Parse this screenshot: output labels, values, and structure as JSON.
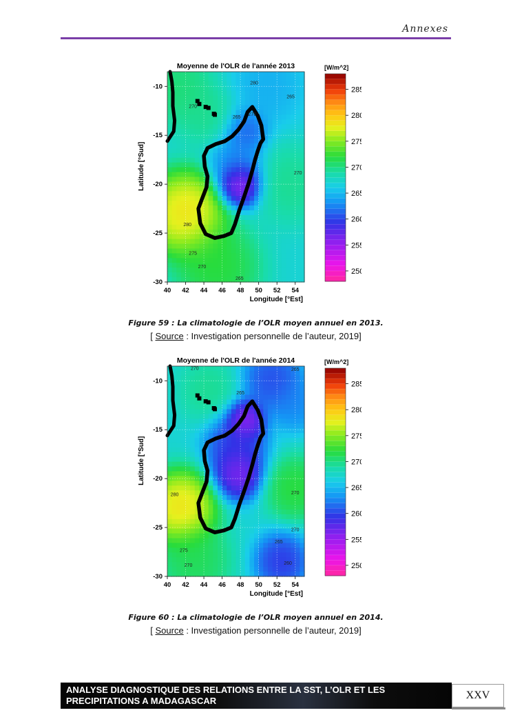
{
  "header": {
    "title": "Annexes"
  },
  "figures": [
    {
      "caption": "Figure 59 : La climatologie de l’OLR moyen annuel en 2013.",
      "source_label": "Source",
      "source_text": " : Investigation personnelle de l’auteur, 2019]"
    },
    {
      "caption": "Figure 60 : La climatologie de l’OLR moyen annuel en 2014.",
      "source_label": "Source",
      "source_text": " : Investigation personnelle de l’auteur, 2019]"
    }
  ],
  "footer": {
    "title_line1": "ANALYSE DIAGNOSTIQUE DES RELATIONS ENTRE LA SST, L’OLR ET LES",
    "title_line2": "PRECIPITATIONS A MADAGASCAR",
    "page": "XXV"
  },
  "chart_data": [
    {
      "type": "heatmap",
      "title": "Moyenne de l'OLR de l'année 2013",
      "xlabel": "Longitude [°Est]",
      "ylabel": "Latitude [°Sud]",
      "xlim": [
        40,
        55
      ],
      "ylim": [
        -30,
        -8.5
      ],
      "xticks": [
        40,
        42,
        44,
        46,
        48,
        50,
        52,
        54
      ],
      "yticks": [
        -10,
        -15,
        -20,
        -25,
        -30
      ],
      "colorbar": {
        "unit": "[W/m^2]",
        "ticks": [
          285,
          280,
          275,
          270,
          265,
          260,
          255,
          250
        ],
        "range": [
          248,
          288
        ]
      },
      "contour_labels": [
        {
          "label": "280",
          "x": 49.5,
          "y": -9.8
        },
        {
          "label": "265",
          "x": 53.5,
          "y": -11.2
        },
        {
          "label": "270",
          "x": 42.8,
          "y": -12.2
        },
        {
          "label": "270",
          "x": 49.3,
          "y": -13.0
        },
        {
          "label": "265",
          "x": 47.6,
          "y": -13.3
        },
        {
          "label": "270",
          "x": 54.3,
          "y": -19.0
        },
        {
          "label": "280",
          "x": 42.2,
          "y": -24.3
        },
        {
          "label": "275",
          "x": 42.8,
          "y": -27.2
        },
        {
          "label": "270",
          "x": 43.8,
          "y": -28.6
        },
        {
          "label": "265",
          "x": 47.9,
          "y": -29.8
        }
      ],
      "field_centers": [
        {
          "x": 42.0,
          "y": -23.0,
          "value": 281,
          "r": 3.2
        },
        {
          "x": 48.0,
          "y": -20.0,
          "value": 252,
          "r": 1.8
        },
        {
          "x": 48.5,
          "y": -14.5,
          "value": 260,
          "r": 1.8
        },
        {
          "x": 47.5,
          "y": -17.5,
          "value": 262,
          "r": 2.2
        },
        {
          "x": 44.5,
          "y": -13.0,
          "value": 270,
          "r": 2.5
        },
        {
          "x": 53.5,
          "y": -20.0,
          "value": 270,
          "r": 3.0
        },
        {
          "x": 51.0,
          "y": -10.0,
          "value": 264,
          "r": 3.0
        },
        {
          "x": 45.5,
          "y": -28.5,
          "value": 273,
          "r": 3.5
        },
        {
          "x": 41.0,
          "y": -10.0,
          "value": 271,
          "r": 3.0
        }
      ]
    },
    {
      "type": "heatmap",
      "title": "Moyenne de l'OLR de l'année 2014",
      "xlabel": "Longitude [°Est]",
      "ylabel": "Latitude [°Sud]",
      "xlim": [
        40,
        55
      ],
      "ylim": [
        -30,
        -8.5
      ],
      "xticks": [
        40,
        42,
        44,
        46,
        48,
        50,
        52,
        54
      ],
      "yticks": [
        -10,
        -15,
        -20,
        -25,
        -30
      ],
      "colorbar": {
        "unit": "[W/m^2]",
        "ticks": [
          285,
          280,
          275,
          270,
          265,
          260,
          255,
          250
        ],
        "range": [
          248,
          288
        ]
      },
      "contour_labels": [
        {
          "label": "270",
          "x": 43.0,
          "y": -8.9
        },
        {
          "label": "265",
          "x": 54.0,
          "y": -9.0
        },
        {
          "label": "265",
          "x": 48.0,
          "y": -11.4
        },
        {
          "label": "280",
          "x": 40.8,
          "y": -21.8
        },
        {
          "label": "270",
          "x": 54.0,
          "y": -21.6
        },
        {
          "label": "270",
          "x": 54.0,
          "y": -25.4
        },
        {
          "label": "265",
          "x": 52.2,
          "y": -26.6
        },
        {
          "label": "275",
          "x": 41.8,
          "y": -27.5
        },
        {
          "label": "270",
          "x": 42.3,
          "y": -29.0
        },
        {
          "label": "260",
          "x": 53.2,
          "y": -28.8
        }
      ],
      "field_centers": [
        {
          "x": 41.5,
          "y": -23.0,
          "value": 281,
          "r": 2.8
        },
        {
          "x": 48.5,
          "y": -14.0,
          "value": 253,
          "r": 1.6
        },
        {
          "x": 47.8,
          "y": -19.5,
          "value": 254,
          "r": 2.0
        },
        {
          "x": 47.5,
          "y": -16.5,
          "value": 258,
          "r": 2.5
        },
        {
          "x": 51.5,
          "y": -10.0,
          "value": 259,
          "r": 2.5
        },
        {
          "x": 54.0,
          "y": -12.5,
          "value": 262,
          "r": 2.0
        },
        {
          "x": 54.0,
          "y": -21.0,
          "value": 273,
          "r": 2.5
        },
        {
          "x": 44.5,
          "y": -11.0,
          "value": 270,
          "r": 2.5
        },
        {
          "x": 52.5,
          "y": -28.5,
          "value": 258,
          "r": 2.2
        },
        {
          "x": 43.0,
          "y": -28.5,
          "value": 272,
          "r": 3.0
        }
      ]
    }
  ]
}
